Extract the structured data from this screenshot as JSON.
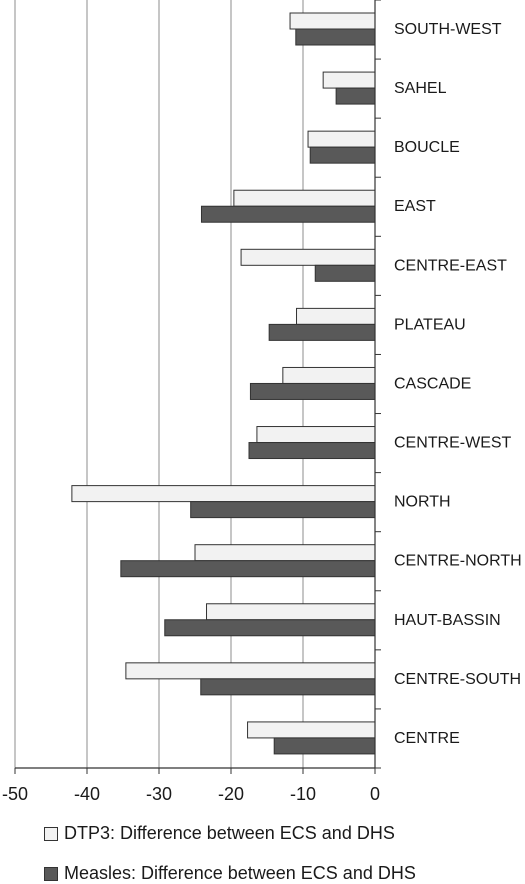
{
  "chart_data": {
    "type": "bar",
    "orientation": "horizontal",
    "categories": [
      "SOUTH-WEST",
      "SAHEL",
      "BOUCLE",
      "EAST",
      "CENTRE-EAST",
      "PLATEAU",
      "CASCADE",
      "CENTRE-WEST",
      "NORTH",
      "CENTRE-NORTH",
      "HAUT-BASSIN",
      "CENTRE-SOUTH",
      "CENTRE"
    ],
    "series": [
      {
        "name": "DTP3: Difference between ECS and DHS",
        "color": "#f2f2f2",
        "values": [
          -11.8,
          -7.2,
          -9.3,
          -19.6,
          -18.6,
          -10.9,
          -12.8,
          -16.4,
          -42.1,
          -25.0,
          -23.4,
          -34.6,
          -17.7
        ]
      },
      {
        "name": "Measles: Difference between ECS and DHS",
        "color": "#595959",
        "values": [
          -11.0,
          -5.4,
          -9.0,
          -24.1,
          -8.3,
          -14.7,
          -17.3,
          -17.5,
          -25.6,
          -35.3,
          -29.2,
          -24.2,
          -14.0
        ]
      }
    ],
    "xlim": [
      -50,
      0
    ],
    "xticks": [
      -50,
      -40,
      -30,
      -20,
      -10,
      0
    ],
    "grid": true,
    "legend_position": "bottom-left",
    "title": "",
    "xlabel": "",
    "ylabel": ""
  },
  "legend": {
    "dtp3": "DTP3: Difference between ECS and DHS",
    "measles": "Measles: Difference between ECS and DHS"
  }
}
